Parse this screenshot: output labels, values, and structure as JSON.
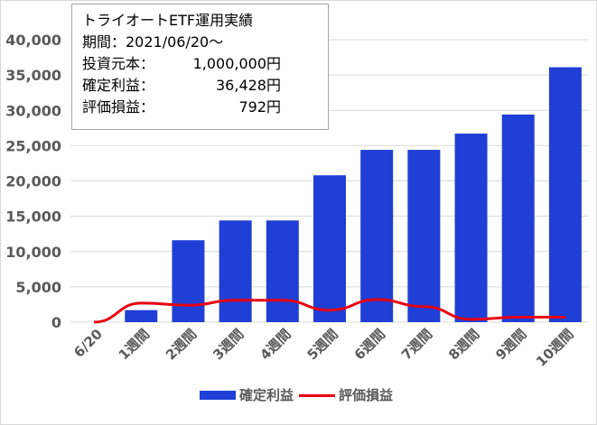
{
  "info": {
    "title": "トライオートETF運用実績",
    "period_label": "期間：2021/06/20～",
    "principal_label": "投資元本：",
    "principal_value": "1,000,000円",
    "profit_label": "確定利益：",
    "profit_value": "36,428円",
    "unrealized_label": "評価損益：",
    "unrealized_value": "792円"
  },
  "colors": {
    "bar": "#1f3fd6",
    "line": "#e60012",
    "axis_text": "#595959",
    "gridline": "#d9d9d9"
  },
  "chart_data": {
    "type": "bar",
    "categories": [
      "6/20",
      "1週間",
      "2週間",
      "3週間",
      "4週間",
      "5週間",
      "6週間",
      "7週間",
      "8週間",
      "9週間",
      "10週間"
    ],
    "series": [
      {
        "name": "確定利益",
        "type": "bar",
        "values": [
          0,
          1700,
          11600,
          14400,
          14400,
          20800,
          24400,
          24400,
          26700,
          29400,
          36100
        ]
      },
      {
        "name": "評価損益",
        "type": "line",
        "values": [
          0,
          2700,
          2400,
          3100,
          3100,
          1700,
          3200,
          2200,
          400,
          700,
          700
        ]
      }
    ],
    "yticks": [
      "0",
      "5,000",
      "10,000",
      "15,000",
      "20,000",
      "25,000",
      "30,000",
      "35,000",
      "40,000"
    ],
    "ylim": [
      0,
      40000
    ],
    "title": "",
    "xlabel": "",
    "ylabel": "",
    "legend_position": "bottom",
    "grid": true
  }
}
